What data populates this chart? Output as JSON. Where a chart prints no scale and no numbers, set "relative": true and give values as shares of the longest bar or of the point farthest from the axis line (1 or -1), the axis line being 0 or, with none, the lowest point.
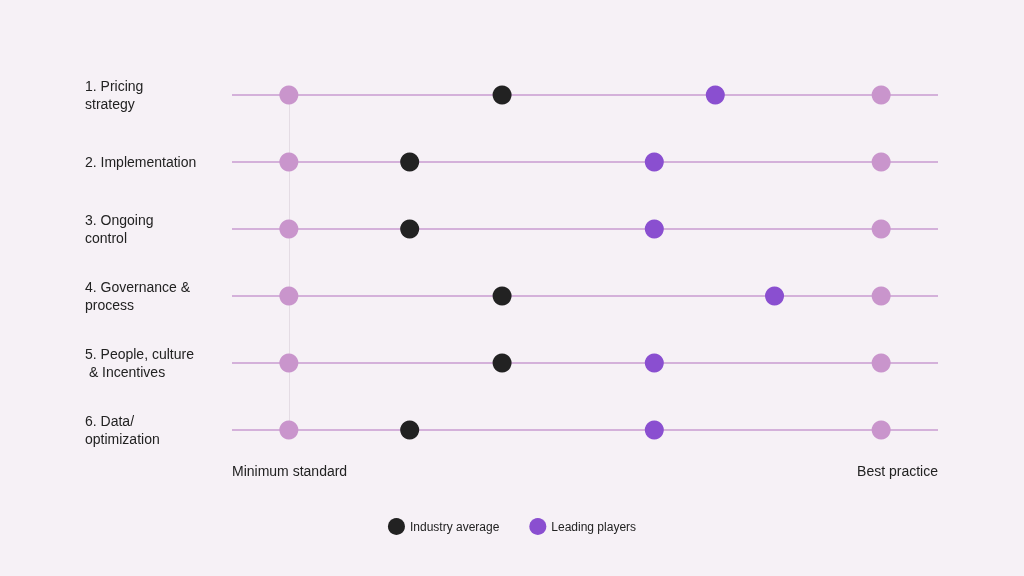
{
  "chart_data": {
    "type": "scatter",
    "orientation": "horizontal",
    "relative": true,
    "categories": [
      "1. Pricing strategy",
      "2. Implementation",
      "3. Ongoing control",
      "4. Governance & process",
      "5. People, culture & Incentives",
      "6. Data/optimization"
    ],
    "series": [
      {
        "color": "#c995cc",
        "values": [
          0,
          0,
          0,
          0,
          0,
          0
        ]
      },
      {
        "color": "#c995cc",
        "values": [
          1,
          1,
          1,
          1,
          1,
          1
        ]
      },
      {
        "name": "Industry average",
        "color": "#222222",
        "values": [
          0.36,
          0.204,
          0.204,
          0.36,
          0.36,
          0.204
        ]
      },
      {
        "name": "Leading players",
        "color": "#8a4fd0",
        "values": [
          0.72,
          0.617,
          0.617,
          0.82,
          0.617,
          0.617
        ]
      }
    ],
    "annotations": [
      "Minimum standard",
      "Best practice"
    ],
    "grid": "y",
    "legend": "bottom",
    "marker": "circle"
  }
}
